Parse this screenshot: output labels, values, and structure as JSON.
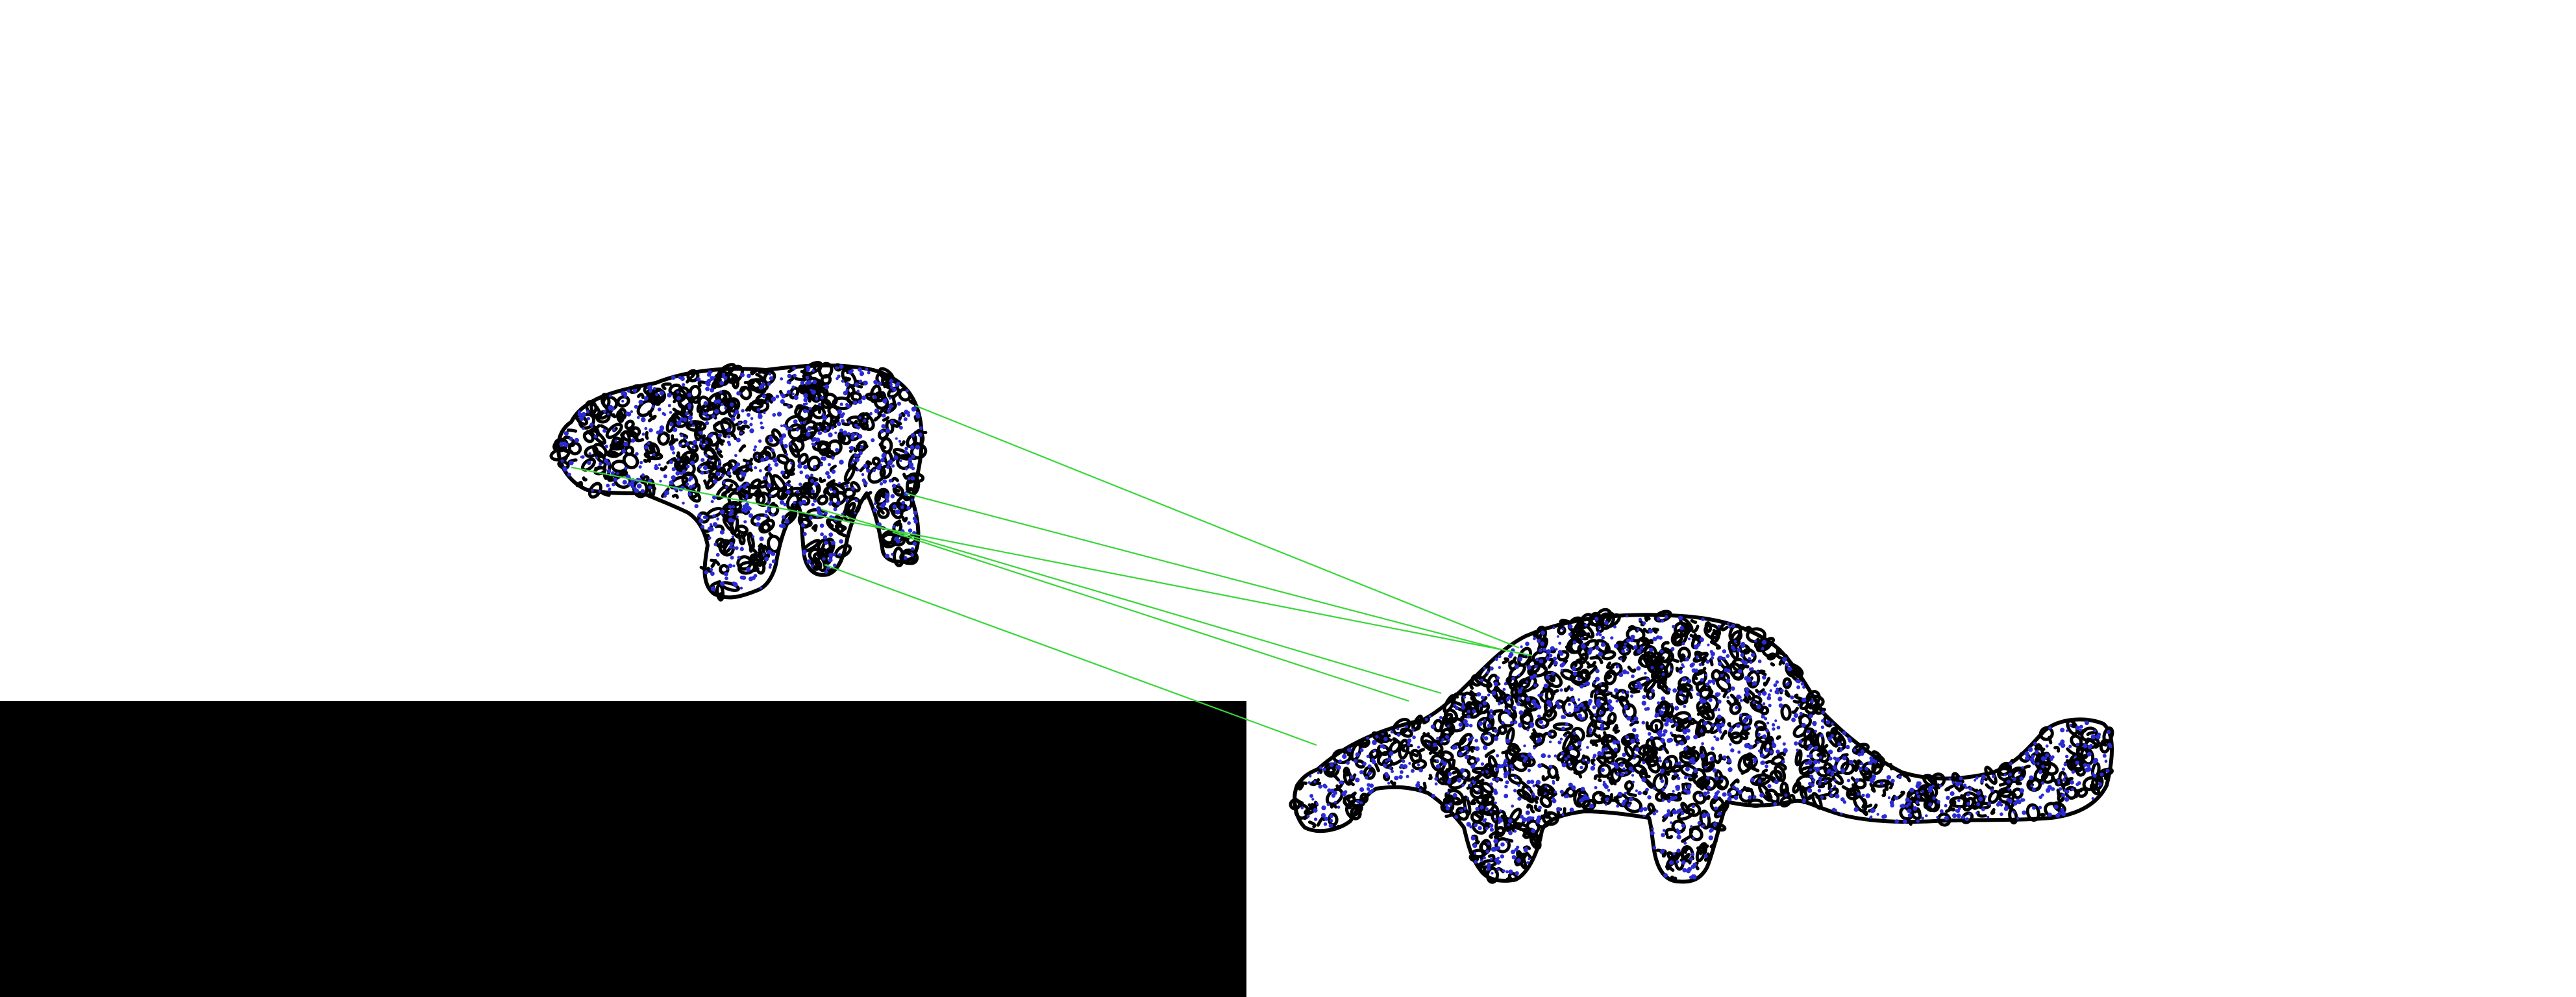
{
  "colors": {
    "background": "#ffffff",
    "outline": "#000000",
    "keypoint": "#2b2bd6",
    "match_line": "#39d639",
    "mask_block": "#000000"
  },
  "panels": [
    {
      "name": "query-animal",
      "shape": "quadruped-small"
    },
    {
      "name": "reference-animal",
      "shape": "long-necked-sauropod"
    }
  ],
  "match_count": 6
}
